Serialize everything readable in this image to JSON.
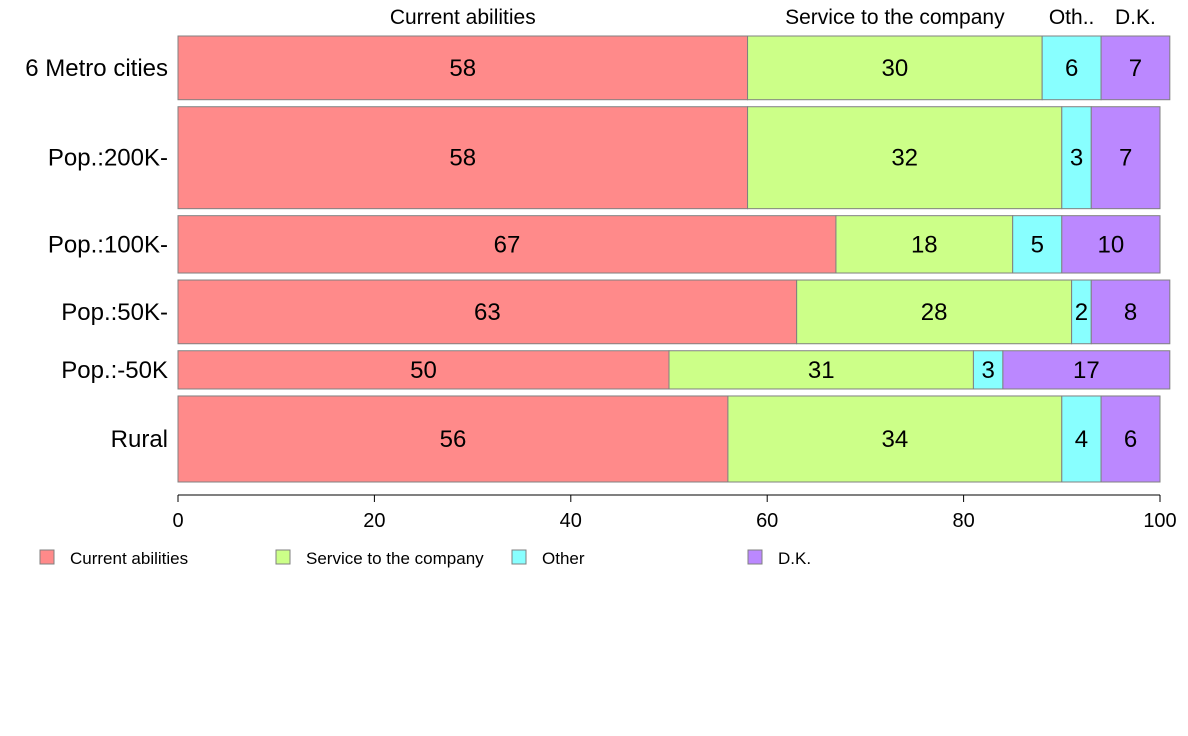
{
  "chart_data": {
    "type": "bar",
    "orientation": "horizontal",
    "stacked": true,
    "title": "",
    "xlabel": "",
    "ylabel": "",
    "xlim": [
      0,
      100
    ],
    "xticks": [
      "0",
      "20",
      "40",
      "60",
      "80",
      "100"
    ],
    "categories": [
      "6 Metro cities",
      "Pop.:200K-",
      "Pop.:100K-",
      "Pop.:50K-",
      "Pop.:-50K",
      "Rural"
    ],
    "category_weights": [
      1.0,
      1.6,
      0.9,
      1.0,
      0.6,
      1.35
    ],
    "top_labels": [
      "Current abilities",
      "Service to the company",
      "Oth..",
      "D.K."
    ],
    "series": [
      {
        "name": "Current abilities",
        "color": "#ff8a8a",
        "values": [
          58,
          58,
          67,
          63,
          50,
          56
        ]
      },
      {
        "name": "Service to the company",
        "color": "#ccff88",
        "values": [
          30,
          32,
          18,
          28,
          31,
          34
        ]
      },
      {
        "name": "Other",
        "color": "#88ffff",
        "values": [
          6,
          3,
          5,
          2,
          3,
          4
        ]
      },
      {
        "name": "D.K.",
        "color": "#bb88ff",
        "values": [
          7,
          7,
          10,
          8,
          17,
          6
        ]
      }
    ],
    "legend": {
      "position": "bottom",
      "items": [
        "Current abilities",
        "Service to the company",
        "Other",
        "D.K."
      ]
    }
  }
}
